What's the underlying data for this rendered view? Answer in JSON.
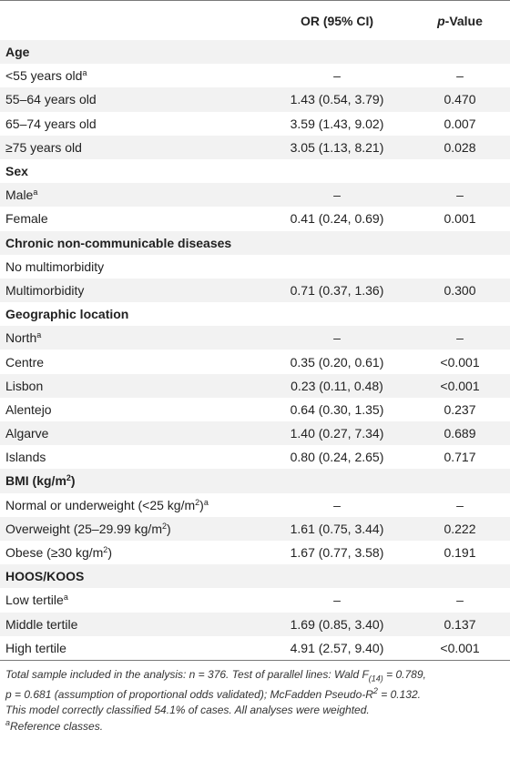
{
  "header": {
    "col_label": "",
    "col_or": "OR (95% CI)",
    "col_p_italic": "p",
    "col_p_rest": "-Value"
  },
  "rows": [
    {
      "type": "group",
      "label": "Age"
    },
    {
      "type": "item",
      "label": "<55 years old",
      "sup": "a",
      "or": "–",
      "p": "–"
    },
    {
      "type": "item",
      "label": "55–64 years old",
      "or": "1.43 (0.54, 3.79)",
      "p": "0.470"
    },
    {
      "type": "item",
      "label": "65–74 years old",
      "or": "3.59 (1.43, 9.02)",
      "p": "0.007"
    },
    {
      "type": "item",
      "label": "≥75 years old",
      "or": "3.05 (1.13, 8.21)",
      "p": "0.028"
    },
    {
      "type": "group",
      "label": "Sex"
    },
    {
      "type": "item",
      "label": "Male",
      "sup": "a",
      "or": "–",
      "p": "–"
    },
    {
      "type": "item",
      "label": "Female",
      "or": "0.41 (0.24, 0.69)",
      "p": "0.001"
    },
    {
      "type": "group",
      "label": "Chronic non-communicable diseases"
    },
    {
      "type": "item",
      "label": "No multimorbidity",
      "or": "",
      "p": ""
    },
    {
      "type": "item",
      "label": "Multimorbidity",
      "or": "0.71 (0.37, 1.36)",
      "p": "0.300"
    },
    {
      "type": "group",
      "label": "Geographic location"
    },
    {
      "type": "item",
      "label": "North",
      "sup": "a",
      "or": "–",
      "p": "–"
    },
    {
      "type": "item",
      "label": "Centre",
      "or": "0.35 (0.20, 0.61)",
      "p": "<0.001"
    },
    {
      "type": "item",
      "label": "Lisbon",
      "or": "0.23 (0.11, 0.48)",
      "p": "<0.001"
    },
    {
      "type": "item",
      "label": "Alentejo",
      "or": "0.64 (0.30, 1.35)",
      "p": "0.237"
    },
    {
      "type": "item",
      "label": "Algarve",
      "or": "1.40 (0.27, 7.34)",
      "p": "0.689"
    },
    {
      "type": "item",
      "label": "Islands",
      "or": "0.80 (0.24, 2.65)",
      "p": "0.717"
    },
    {
      "type": "group",
      "label": "BMI (kg/m",
      "sup2": "2",
      "after": ")"
    },
    {
      "type": "item",
      "label": "Normal or underweight (<25 kg/m",
      "sup2": "2",
      "after": ")",
      "sup": "a",
      "or": "–",
      "p": "–"
    },
    {
      "type": "item",
      "label": "Overweight (25–29.99 kg/m",
      "sup2": "2",
      "after": ")",
      "or": "1.61 (0.75, 3.44)",
      "p": "0.222"
    },
    {
      "type": "item",
      "label": "Obese (≥30 kg/m",
      "sup2": "2",
      "after": ")",
      "or": "1.67 (0.77, 3.58)",
      "p": "0.191"
    },
    {
      "type": "group",
      "label": "HOOS/KOOS"
    },
    {
      "type": "item",
      "label": "Low tertile",
      "sup": "a",
      "or": "–",
      "p": "–"
    },
    {
      "type": "item",
      "label": "Middle tertile",
      "or": "1.69 (0.85, 3.40)",
      "p": "0.137"
    },
    {
      "type": "item",
      "label": "High tertile",
      "or": "4.91 (2.57, 9.40)",
      "p": "<0.001"
    }
  ],
  "footnote": {
    "line1": "Total sample included in the analysis: n = 376. Test of parallel lines: Wald F(14) = 0.789,",
    "line2": "p = 0.681 (assumption of proportional odds validated); McFadden Pseudo-R2 = 0.132.",
    "line3": "This model correctly classified 54.1% of cases. All analyses were weighted.",
    "ref_sup": "a",
    "ref_text": "Reference classes."
  }
}
